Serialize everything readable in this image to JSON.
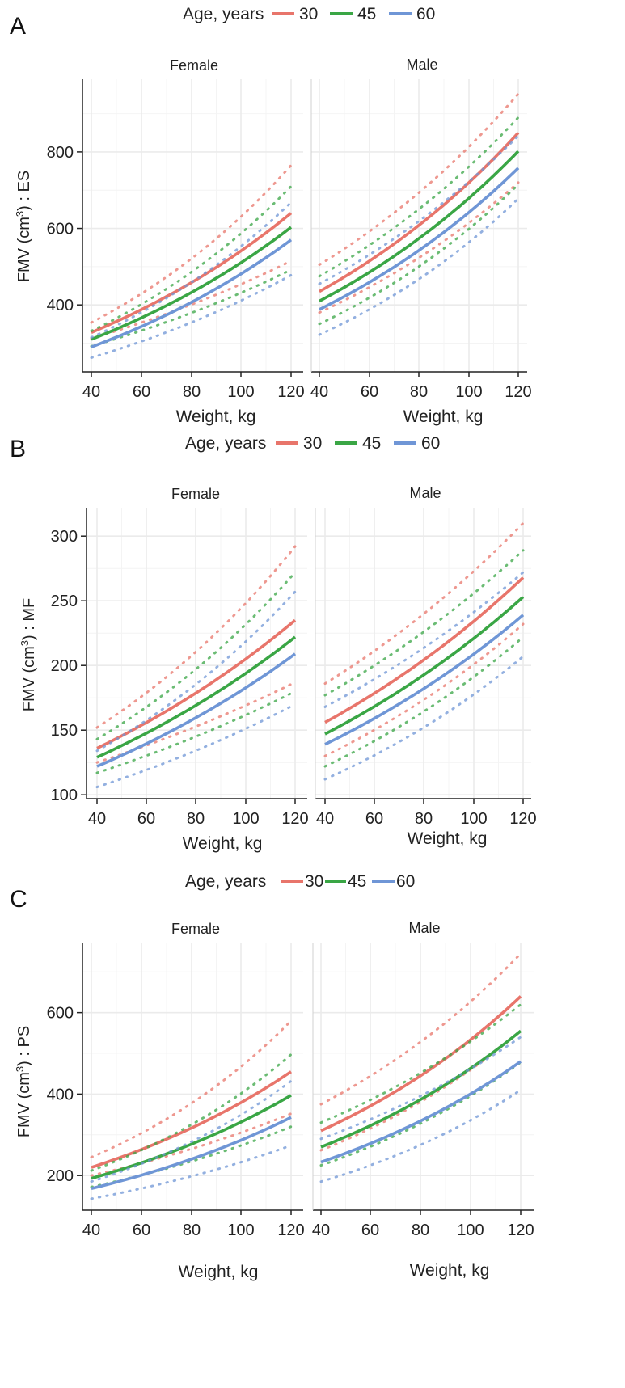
{
  "colors": {
    "age_30": "#e8756b",
    "age_45": "#3aa645",
    "age_60": "#6f96d6"
  },
  "chart_data": [
    {
      "panel": "A",
      "type": "line",
      "legend": {
        "title": "Age, years",
        "entries": [
          "30",
          "45",
          "60"
        ]
      },
      "ylabel_pre": "FMV (cm",
      "ylabel_sup": "3",
      "ylabel_post": ") : ES",
      "xlabel": "Weight, kg",
      "xlim": [
        40,
        120
      ],
      "xticks": [
        "40",
        "60",
        "80",
        "100",
        "120"
      ],
      "ylim": [
        225,
        990
      ],
      "yticks": [
        "400",
        "600",
        "800"
      ],
      "ytick_values": [
        400,
        600,
        800
      ],
      "facets": [
        {
          "title": "Female",
          "series": [
            {
              "name": "30",
              "fit": [
                328,
                640
              ],
              "lower": [
                312,
                515
              ],
              "upper": [
                354,
                765
              ]
            },
            {
              "name": "45",
              "fit": [
                310,
                603
              ],
              "lower": [
                292,
                492
              ],
              "upper": [
                332,
                710
              ]
            },
            {
              "name": "60",
              "fit": [
                290,
                570
              ],
              "lower": [
                262,
                478
              ],
              "upper": [
                315,
                668
              ]
            }
          ]
        },
        {
          "title": "Male",
          "series": [
            {
              "name": "30",
              "fit": [
                435,
                850
              ],
              "lower": [
                380,
                720
              ],
              "upper": [
                505,
                952
              ]
            },
            {
              "name": "45",
              "fit": [
                410,
                802
              ],
              "lower": [
                350,
                715
              ],
              "upper": [
                475,
                890
              ]
            },
            {
              "name": "60",
              "fit": [
                388,
                758
              ],
              "lower": [
                322,
                678
              ],
              "upper": [
                455,
                842
              ]
            }
          ]
        }
      ]
    },
    {
      "panel": "B",
      "type": "line",
      "legend": {
        "title": "Age, years",
        "entries": [
          "30",
          "45",
          "60"
        ]
      },
      "ylabel_pre": "FMV (cm",
      "ylabel_sup": "3",
      "ylabel_post": ") : MF",
      "xlabel": "Weight, kg",
      "xlim": [
        40,
        120
      ],
      "xticks": [
        "40",
        "60",
        "80",
        "100",
        "120"
      ],
      "ylim": [
        97,
        322
      ],
      "yticks": [
        "100",
        "150",
        "200",
        "250",
        "300"
      ],
      "ytick_values": [
        100,
        150,
        200,
        250,
        300
      ],
      "facets": [
        {
          "title": "Female",
          "series": [
            {
              "name": "30",
              "fit": [
                136,
                235
              ],
              "lower": [
                125,
                187
              ],
              "upper": [
                152,
                292
              ]
            },
            {
              "name": "45",
              "fit": [
                129,
                222
              ],
              "lower": [
                117,
                180
              ],
              "upper": [
                143,
                272
              ]
            },
            {
              "name": "60",
              "fit": [
                122,
                209
              ],
              "lower": [
                106,
                170
              ],
              "upper": [
                134,
                257
              ]
            }
          ]
        },
        {
          "title": "Male",
          "series": [
            {
              "name": "30",
              "fit": [
                156,
                268
              ],
              "lower": [
                130,
                232
              ],
              "upper": [
                186,
                310
              ]
            },
            {
              "name": "45",
              "fit": [
                147,
                253
              ],
              "lower": [
                122,
                222
              ],
              "upper": [
                177,
                289
              ]
            },
            {
              "name": "60",
              "fit": [
                139,
                239
              ],
              "lower": [
                112,
                207
              ],
              "upper": [
                168,
                272
              ]
            }
          ]
        }
      ]
    },
    {
      "panel": "C",
      "type": "line",
      "legend": {
        "title": "Age, years",
        "entries": [
          "30",
          "45",
          "60"
        ]
      },
      "ylabel_pre": "FMV (cm",
      "ylabel_sup": "3",
      "ylabel_post": ") : PS",
      "xlabel": "Weight, kg",
      "xlim": [
        40,
        120
      ],
      "xticks": [
        "40",
        "60",
        "80",
        "100",
        "120"
      ],
      "ylim": [
        115,
        770
      ],
      "yticks": [
        "200",
        "400",
        "600"
      ],
      "ytick_values": [
        200,
        400,
        600
      ],
      "facets": [
        {
          "title": "Female",
          "series": [
            {
              "name": "30",
              "fit": [
                220,
                455
              ],
              "lower": [
                200,
                352
              ],
              "upper": [
                245,
                580
              ]
            },
            {
              "name": "45",
              "fit": [
                193,
                397
              ],
              "lower": [
                172,
                320
              ],
              "upper": [
                212,
                497
              ]
            },
            {
              "name": "60",
              "fit": [
                168,
                343
              ],
              "lower": [
                143,
                274
              ],
              "upper": [
                185,
                432
              ]
            }
          ]
        },
        {
          "title": "Male",
          "series": [
            {
              "name": "30",
              "fit": [
                310,
                640
              ],
              "lower": [
                262,
                555
              ],
              "upper": [
                375,
                745
              ]
            },
            {
              "name": "45",
              "fit": [
                270,
                555
              ],
              "lower": [
                225,
                478
              ],
              "upper": [
                330,
                620
              ]
            },
            {
              "name": "60",
              "fit": [
                233,
                480
              ],
              "lower": [
                185,
                410
              ],
              "upper": [
                290,
                540
              ]
            }
          ]
        }
      ]
    }
  ]
}
